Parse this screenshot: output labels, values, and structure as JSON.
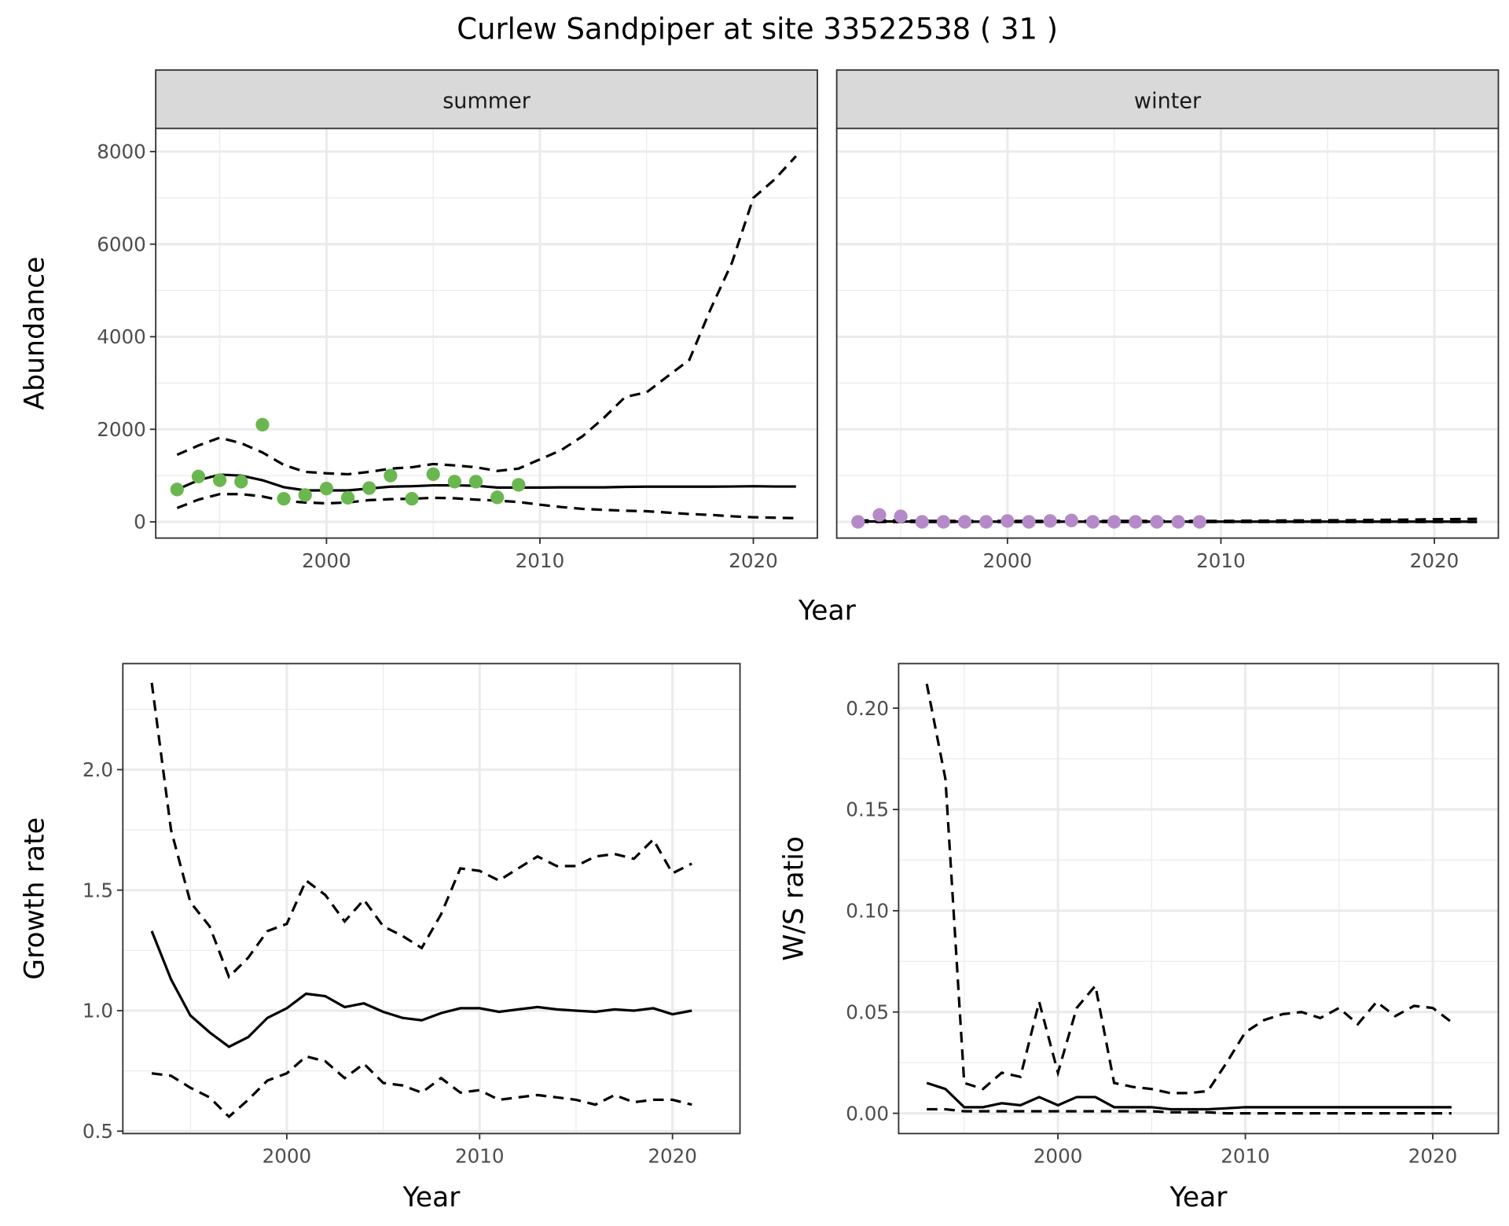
{
  "title": "Curlew Sandpiper at site 33522538 ( 31 )",
  "colors": {
    "summer_points": "#6ab74f",
    "winter_points": "#b48bc8",
    "strip_bg": "#d9d9d9",
    "grid": "#ebebeb"
  },
  "chart_data": [
    {
      "type": "line",
      "facet": "summer",
      "xlabel": "Year",
      "ylabel": "Abundance",
      "xlim": [
        1992,
        2023
      ],
      "ylim": [
        -350,
        8500
      ],
      "xticks": [
        "2000",
        "2010",
        "2020"
      ],
      "yticks": [
        "0",
        "2000",
        "4000",
        "6000",
        "8000"
      ],
      "points": {
        "x": [
          1993,
          1994,
          1995,
          1996,
          1997,
          1998,
          1999,
          2000,
          2001,
          2002,
          2003,
          2004,
          2005,
          2006,
          2007,
          2008,
          2009
        ],
        "y": [
          700,
          980,
          900,
          870,
          2100,
          500,
          580,
          720,
          520,
          730,
          1000,
          500,
          1030,
          870,
          870,
          530,
          800
        ]
      },
      "x": [
        1993,
        1994,
        1995,
        1996,
        1997,
        1998,
        1999,
        2000,
        2001,
        2002,
        2003,
        2004,
        2005,
        2006,
        2007,
        2008,
        2009,
        2010,
        2011,
        2012,
        2013,
        2014,
        2015,
        2016,
        2017,
        2018,
        2019,
        2020,
        2021,
        2022
      ],
      "series": [
        {
          "name": "mean",
          "style": "solid",
          "values": [
            700,
            900,
            1020,
            1000,
            900,
            750,
            680,
            680,
            680,
            720,
            760,
            770,
            790,
            790,
            780,
            740,
            740,
            740,
            745,
            745,
            745,
            755,
            760,
            760,
            760,
            760,
            765,
            770,
            765,
            765
          ]
        },
        {
          "name": "upper",
          "style": "dashed",
          "values": [
            1450,
            1650,
            1820,
            1700,
            1500,
            1230,
            1080,
            1050,
            1030,
            1080,
            1150,
            1180,
            1250,
            1220,
            1180,
            1100,
            1150,
            1350,
            1550,
            1850,
            2250,
            2700,
            2800,
            3150,
            3500,
            4600,
            5600,
            7000,
            7400,
            7900
          ]
        },
        {
          "name": "lower",
          "style": "dashed",
          "values": [
            300,
            480,
            600,
            600,
            550,
            450,
            420,
            400,
            420,
            470,
            490,
            500,
            520,
            510,
            480,
            460,
            430,
            370,
            320,
            280,
            260,
            240,
            230,
            200,
            170,
            150,
            120,
            100,
            90,
            80
          ]
        }
      ]
    },
    {
      "type": "line",
      "facet": "winter",
      "xlabel": "Year",
      "ylabel": "Abundance",
      "xlim": [
        1992,
        2023
      ],
      "ylim": [
        -350,
        8500
      ],
      "xticks": [
        "2000",
        "2010",
        "2020"
      ],
      "points": {
        "x": [
          1993,
          1994,
          1995,
          1996,
          1997,
          1998,
          1999,
          2000,
          2001,
          2002,
          2003,
          2004,
          2005,
          2006,
          2007,
          2008,
          2009
        ],
        "y": [
          0,
          150,
          120,
          0,
          0,
          0,
          0,
          20,
          0,
          20,
          30,
          0,
          0,
          0,
          0,
          0,
          0
        ]
      },
      "x": [
        1993,
        1994,
        1995,
        1996,
        1997,
        1998,
        1999,
        2000,
        2001,
        2002,
        2003,
        2004,
        2005,
        2006,
        2007,
        2008,
        2009,
        2010,
        2011,
        2012,
        2013,
        2014,
        2015,
        2016,
        2017,
        2018,
        2019,
        2020,
        2021,
        2022
      ],
      "series": [
        {
          "name": "mean",
          "style": "solid",
          "values": [
            10,
            10,
            10,
            5,
            5,
            5,
            5,
            5,
            5,
            5,
            5,
            5,
            5,
            5,
            5,
            5,
            5,
            5,
            5,
            5,
            5,
            5,
            5,
            5,
            5,
            5,
            5,
            5,
            5,
            5
          ]
        },
        {
          "name": "upper",
          "style": "dashed",
          "values": [
            30,
            30,
            30,
            20,
            20,
            20,
            20,
            20,
            20,
            20,
            20,
            20,
            20,
            20,
            20,
            20,
            20,
            20,
            25,
            25,
            30,
            30,
            35,
            35,
            40,
            45,
            50,
            55,
            60,
            65
          ]
        },
        {
          "name": "lower",
          "style": "dashed",
          "values": [
            0,
            0,
            0,
            0,
            0,
            0,
            0,
            0,
            0,
            0,
            0,
            0,
            0,
            0,
            0,
            0,
            0,
            0,
            0,
            0,
            0,
            0,
            0,
            0,
            0,
            0,
            0,
            0,
            0,
            0
          ]
        }
      ]
    },
    {
      "type": "line",
      "xlabel": "Year",
      "ylabel": "Growth rate",
      "xlim": [
        1991.5,
        2023.5
      ],
      "ylim": [
        0.49,
        2.44
      ],
      "xticks": [
        "2000",
        "2010",
        "2020"
      ],
      "yticks": [
        "0.5",
        "1.0",
        "1.5",
        "2.0"
      ],
      "x": [
        1993,
        1994,
        1995,
        1996,
        1997,
        1998,
        1999,
        2000,
        2001,
        2002,
        2003,
        2004,
        2005,
        2006,
        2007,
        2008,
        2009,
        2010,
        2011,
        2012,
        2013,
        2014,
        2015,
        2016,
        2017,
        2018,
        2019,
        2020,
        2021
      ],
      "series": [
        {
          "name": "mean",
          "style": "solid",
          "values": [
            1.33,
            1.13,
            0.98,
            0.91,
            0.85,
            0.89,
            0.97,
            1.01,
            1.07,
            1.06,
            1.015,
            1.03,
            0.995,
            0.97,
            0.96,
            0.99,
            1.01,
            1.01,
            0.995,
            1.005,
            1.015,
            1.005,
            1.0,
            0.995,
            1.005,
            1.0,
            1.01,
            0.985,
            1.0
          ]
        },
        {
          "name": "upper",
          "style": "dashed",
          "values": [
            2.36,
            1.75,
            1.45,
            1.35,
            1.14,
            1.22,
            1.33,
            1.36,
            1.54,
            1.48,
            1.37,
            1.46,
            1.35,
            1.31,
            1.26,
            1.4,
            1.59,
            1.58,
            1.54,
            1.59,
            1.64,
            1.6,
            1.6,
            1.64,
            1.65,
            1.63,
            1.71,
            1.57,
            1.61
          ]
        },
        {
          "name": "lower",
          "style": "dashed",
          "values": [
            0.74,
            0.73,
            0.68,
            0.64,
            0.56,
            0.63,
            0.71,
            0.74,
            0.81,
            0.79,
            0.72,
            0.78,
            0.7,
            0.69,
            0.66,
            0.72,
            0.66,
            0.67,
            0.63,
            0.64,
            0.65,
            0.64,
            0.63,
            0.61,
            0.65,
            0.62,
            0.63,
            0.63,
            0.61
          ]
        }
      ]
    },
    {
      "type": "line",
      "xlabel": "Year",
      "ylabel": "W/S ratio",
      "xlim": [
        1991.5,
        2023.5
      ],
      "ylim": [
        -0.01,
        0.222
      ],
      "xticks": [
        "2000",
        "2010",
        "2020"
      ],
      "yticks": [
        "0.00",
        "0.05",
        "0.10",
        "0.15",
        "0.20"
      ],
      "x": [
        1993,
        1994,
        1995,
        1996,
        1997,
        1998,
        1999,
        2000,
        2001,
        2002,
        2003,
        2004,
        2005,
        2006,
        2007,
        2008,
        2009,
        2010,
        2011,
        2012,
        2013,
        2014,
        2015,
        2016,
        2017,
        2018,
        2019,
        2020,
        2021
      ],
      "series": [
        {
          "name": "mean",
          "style": "solid",
          "values": [
            0.015,
            0.012,
            0.003,
            0.003,
            0.005,
            0.004,
            0.008,
            0.004,
            0.008,
            0.008,
            0.003,
            0.003,
            0.003,
            0.002,
            0.002,
            0.002,
            0.0025,
            0.003,
            0.003,
            0.003,
            0.003,
            0.003,
            0.003,
            0.003,
            0.003,
            0.003,
            0.003,
            0.003,
            0.003
          ]
        },
        {
          "name": "upper",
          "style": "dashed",
          "values": [
            0.212,
            0.165,
            0.015,
            0.012,
            0.02,
            0.018,
            0.055,
            0.02,
            0.052,
            0.063,
            0.015,
            0.013,
            0.012,
            0.01,
            0.01,
            0.011,
            0.025,
            0.04,
            0.046,
            0.049,
            0.05,
            0.047,
            0.052,
            0.044,
            0.055,
            0.048,
            0.053,
            0.052,
            0.045
          ]
        },
        {
          "name": "lower",
          "style": "dashed",
          "values": [
            0.002,
            0.002,
            0.001,
            0.001,
            0.001,
            0.001,
            0.001,
            0.001,
            0.001,
            0.001,
            0.001,
            0.001,
            0.001,
            0.0005,
            0.0005,
            0.0005,
            0,
            0,
            0,
            0,
            0,
            0,
            0,
            0,
            0,
            0,
            0,
            0,
            0
          ]
        }
      ]
    }
  ],
  "panel_labels": {
    "summer": "summer",
    "winter": "winter",
    "top_xlabel": "Year"
  }
}
